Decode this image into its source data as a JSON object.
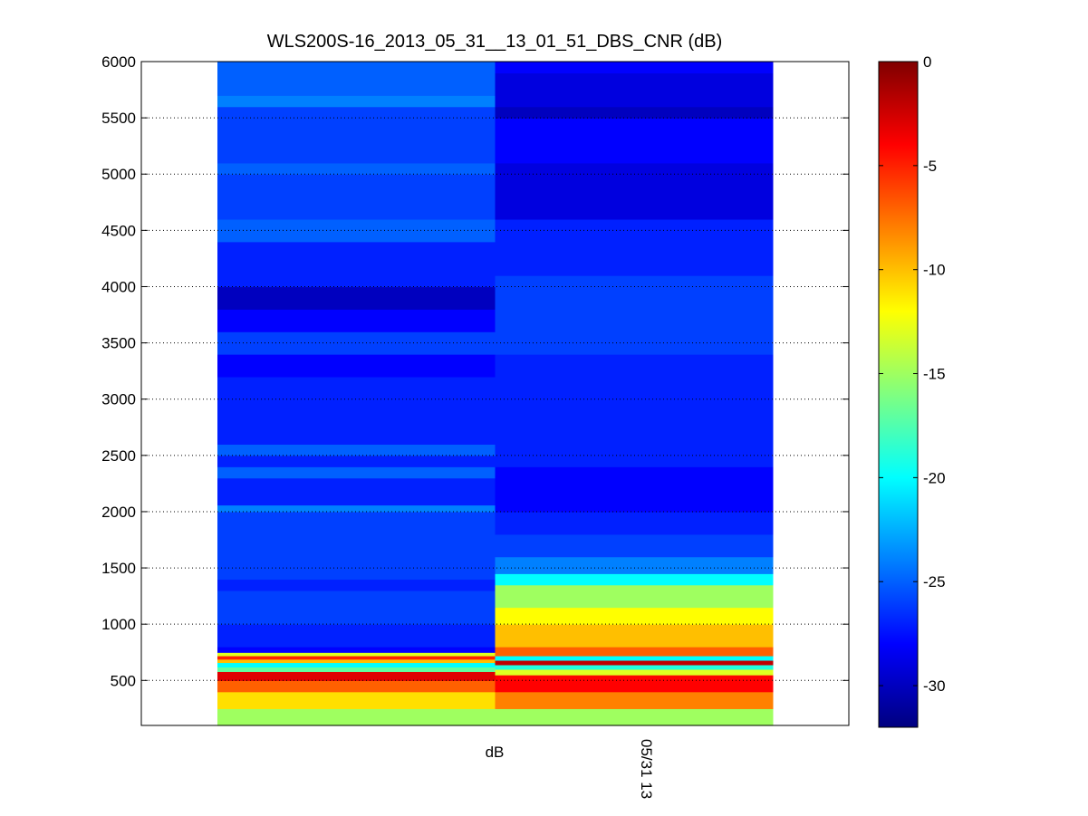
{
  "chart_data": {
    "type": "heatmap",
    "title": "WLS200S-16_2013_05_31__13_01_51_DBS_CNR (dB)",
    "xlabel": "",
    "ylabel": "",
    "x_tick_labels": [
      "dB",
      "05/31 13"
    ],
    "y_ticks": [
      500,
      1000,
      1500,
      2000,
      2500,
      3000,
      3500,
      4000,
      4500,
      5000,
      5500,
      6000
    ],
    "ylim": [
      100,
      6000
    ],
    "grid": "horizontal-dotted",
    "colormap": "jet",
    "colorbar": {
      "range": [
        -32,
        0
      ],
      "ticks": [
        0,
        -5,
        -10,
        -15,
        -20,
        -25,
        -30
      ],
      "placement": "right"
    },
    "columns": [
      {
        "bands": [
          {
            "y0": 100,
            "y1": 250,
            "v": -15
          },
          {
            "y0": 250,
            "y1": 400,
            "v": -11
          },
          {
            "y0": 400,
            "y1": 500,
            "v": -7
          },
          {
            "y0": 500,
            "y1": 580,
            "v": -3
          },
          {
            "y0": 580,
            "y1": 620,
            "v": -17
          },
          {
            "y0": 620,
            "y1": 660,
            "v": -20
          },
          {
            "y0": 660,
            "y1": 690,
            "v": -10
          },
          {
            "y0": 690,
            "y1": 720,
            "v": -5
          },
          {
            "y0": 720,
            "y1": 750,
            "v": -13
          },
          {
            "y0": 750,
            "y1": 800,
            "v": -28
          },
          {
            "y0": 800,
            "y1": 1000,
            "v": -27
          },
          {
            "y0": 1000,
            "y1": 1300,
            "v": -26
          },
          {
            "y0": 1300,
            "y1": 1400,
            "v": -27
          },
          {
            "y0": 1400,
            "y1": 2000,
            "v": -26
          },
          {
            "y0": 2000,
            "y1": 2060,
            "v": -24
          },
          {
            "y0": 2060,
            "y1": 2300,
            "v": -27
          },
          {
            "y0": 2300,
            "y1": 2400,
            "v": -25
          },
          {
            "y0": 2400,
            "y1": 2500,
            "v": -27
          },
          {
            "y0": 2500,
            "y1": 2600,
            "v": -25
          },
          {
            "y0": 2600,
            "y1": 3200,
            "v": -27
          },
          {
            "y0": 3200,
            "y1": 3400,
            "v": -28
          },
          {
            "y0": 3400,
            "y1": 3600,
            "v": -26
          },
          {
            "y0": 3600,
            "y1": 3800,
            "v": -28
          },
          {
            "y0": 3800,
            "y1": 4000,
            "v": -30
          },
          {
            "y0": 4000,
            "y1": 4400,
            "v": -27
          },
          {
            "y0": 4400,
            "y1": 4600,
            "v": -25
          },
          {
            "y0": 4600,
            "y1": 5000,
            "v": -26
          },
          {
            "y0": 5000,
            "y1": 5100,
            "v": -25
          },
          {
            "y0": 5100,
            "y1": 5600,
            "v": -26
          },
          {
            "y0": 5600,
            "y1": 5700,
            "v": -24
          },
          {
            "y0": 5700,
            "y1": 6000,
            "v": -25
          }
        ]
      },
      {
        "bands": [
          {
            "y0": 100,
            "y1": 250,
            "v": -15
          },
          {
            "y0": 250,
            "y1": 400,
            "v": -8
          },
          {
            "y0": 400,
            "y1": 550,
            "v": -4
          },
          {
            "y0": 550,
            "y1": 600,
            "v": -13
          },
          {
            "y0": 600,
            "y1": 640,
            "v": -19
          },
          {
            "y0": 640,
            "y1": 680,
            "v": -2
          },
          {
            "y0": 680,
            "y1": 720,
            "v": -20
          },
          {
            "y0": 720,
            "y1": 800,
            "v": -7
          },
          {
            "y0": 800,
            "y1": 1000,
            "v": -10
          },
          {
            "y0": 1000,
            "y1": 1150,
            "v": -12
          },
          {
            "y0": 1150,
            "y1": 1350,
            "v": -15
          },
          {
            "y0": 1350,
            "y1": 1450,
            "v": -20
          },
          {
            "y0": 1450,
            "y1": 1600,
            "v": -24
          },
          {
            "y0": 1600,
            "y1": 1800,
            "v": -26
          },
          {
            "y0": 1800,
            "y1": 2000,
            "v": -27
          },
          {
            "y0": 2000,
            "y1": 2400,
            "v": -28
          },
          {
            "y0": 2400,
            "y1": 3000,
            "v": -27
          },
          {
            "y0": 3000,
            "y1": 3400,
            "v": -27
          },
          {
            "y0": 3400,
            "y1": 4100,
            "v": -26
          },
          {
            "y0": 4100,
            "y1": 4600,
            "v": -27
          },
          {
            "y0": 4600,
            "y1": 5100,
            "v": -29
          },
          {
            "y0": 5100,
            "y1": 5500,
            "v": -28
          },
          {
            "y0": 5500,
            "y1": 5600,
            "v": -30
          },
          {
            "y0": 5600,
            "y1": 5900,
            "v": -29
          },
          {
            "y0": 5900,
            "y1": 6000,
            "v": -28
          }
        ]
      }
    ]
  }
}
